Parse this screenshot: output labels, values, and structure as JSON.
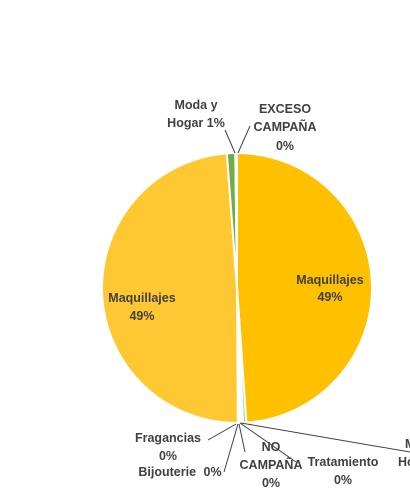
{
  "chart_data": {
    "type": "pie",
    "title": "",
    "legend": "none",
    "slices": [
      {
        "label": "Maquillajes",
        "value": 49,
        "value_label": "49%",
        "color": "#FFC000"
      },
      {
        "label": "Tratamiento",
        "value": 0.4,
        "value_label": "0%",
        "color": "#A9D18E"
      },
      {
        "label": "NO CAMPAÑA",
        "value": 0.2,
        "value_label": "0%",
        "color": "#8FAADC"
      },
      {
        "label": "Bijouterie",
        "value": 0.2,
        "value_label": "0%",
        "color": "#C9C9C9"
      },
      {
        "label": "Fragancias",
        "value": 0.2,
        "value_label": "0%",
        "color": "#F4B183"
      },
      {
        "label": "Maquillajes",
        "value": 49,
        "value_label": "49%",
        "color": "#FFC832"
      },
      {
        "label": "Moda y Hogar",
        "value": 1,
        "value_label": "1%",
        "color": "#70AD47"
      },
      {
        "label": "EXCESO CAMPAÑA",
        "value": 0.2,
        "value_label": "0%",
        "color": "#9DC3E6"
      }
    ],
    "cut_off_label": {
      "line1": "M",
      "line2": "Ho"
    }
  }
}
